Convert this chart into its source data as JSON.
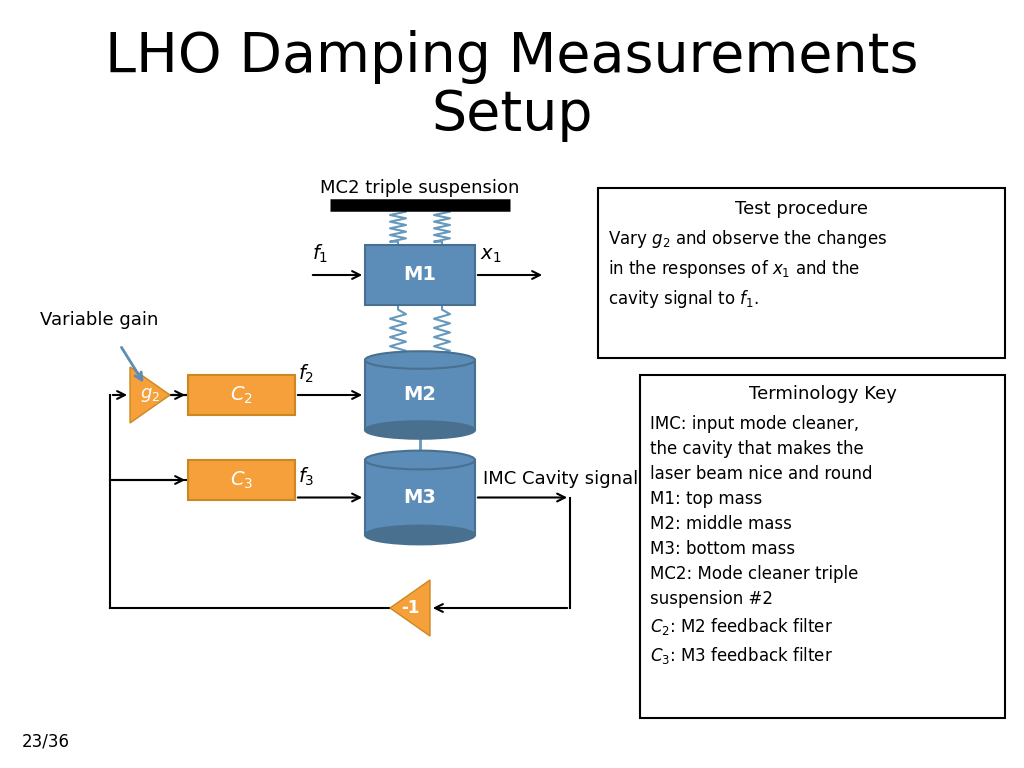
{
  "title": "LHO Damping Measurements\nSetup",
  "title_fontsize": 40,
  "bg_color": "#ffffff",
  "orange_color": "#F5A03A",
  "blue_color": "#5B8DB8",
  "blue_dark": "#4A7BA0",
  "text_color": "#000000",
  "slide_number": "23/36",
  "test_procedure_title": "Test procedure",
  "test_procedure_body": "Vary $g_2$ and observe the changes\nin the responses of $x_1$ and the\ncavity signal to $f_1$.",
  "terminology_title": "Terminology Key",
  "terminology_body": "IMC: input mode cleaner,\nthe cavity that makes the\nlaser beam nice and round\nM1: top mass\nM2: middle mass\nM3: bottom mass\nMC2: Mode cleaner triple\nsuspension #2\n$C_2$: M2 feedback filter\n$C_3$: M3 feedback filter"
}
